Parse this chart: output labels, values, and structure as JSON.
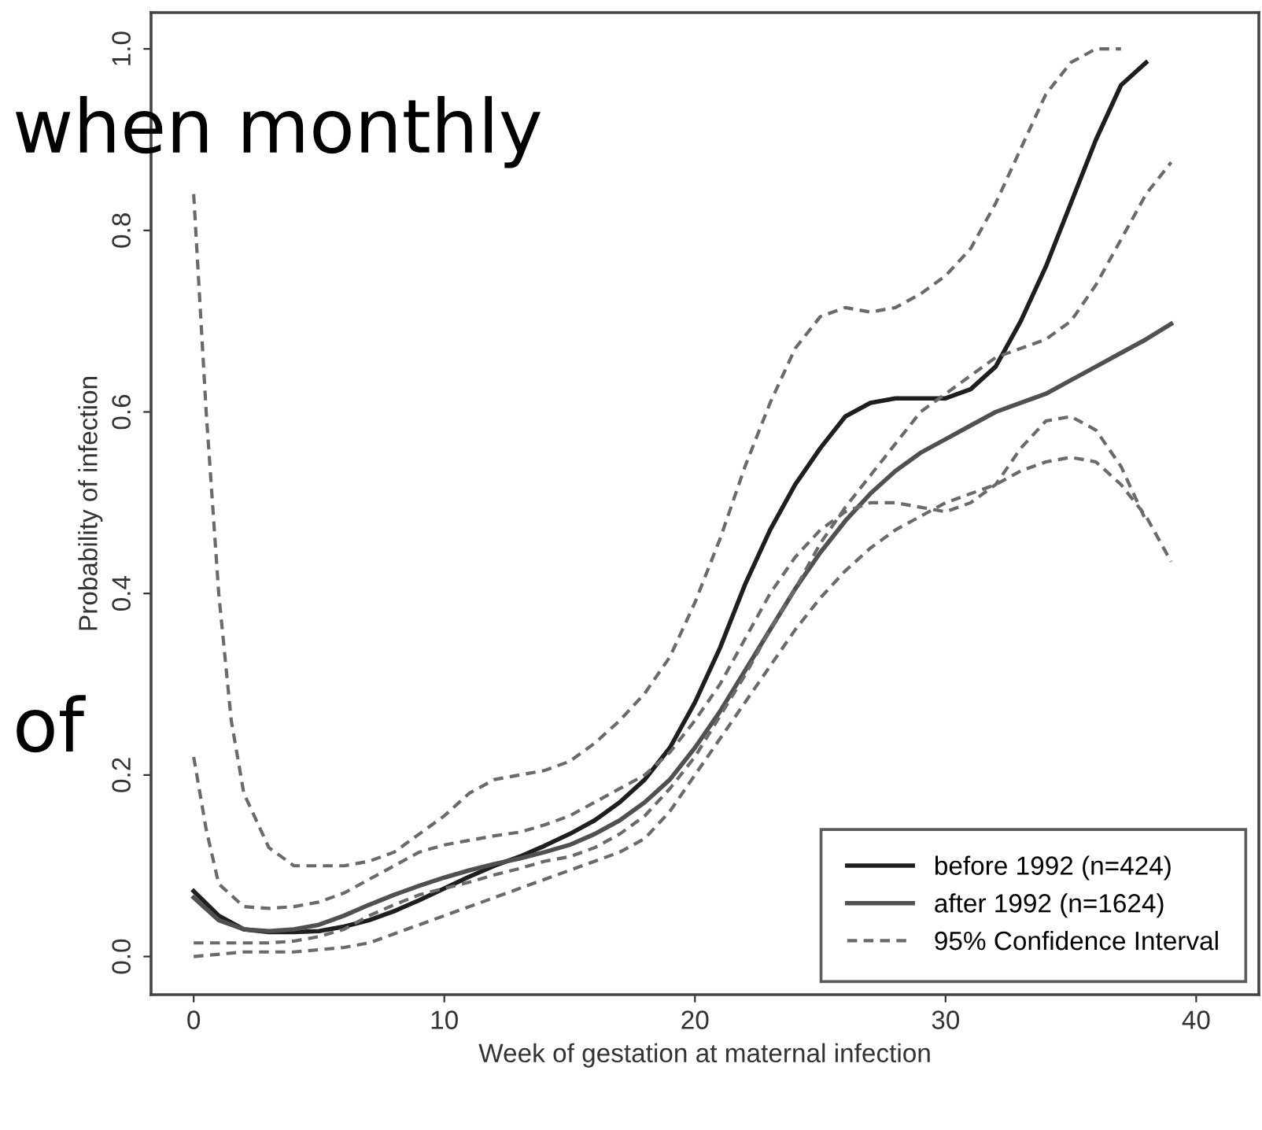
{
  "chart_data": {
    "type": "line",
    "xlabel": "Week of gestation at maternal infection",
    "ylabel": "Probability of infection",
    "xlim": [
      -1.7,
      42.5
    ],
    "ylim": [
      -0.042,
      1.04
    ],
    "xticks": [
      0,
      10,
      20,
      30,
      40
    ],
    "yticks": [
      {
        "value": 0,
        "label": "0.0"
      },
      0.2,
      0.4,
      0.6,
      0.8,
      {
        "value": 1,
        "label": "1.0"
      }
    ],
    "grid": false,
    "legend": "bottom right",
    "annotations": [
      "when monthly",
      "of"
    ],
    "series": [
      {
        "name": "before 1992 (n=424)",
        "color": "#1e1e1e",
        "line_style": "solid",
        "x": [
          0,
          1,
          2,
          3,
          4,
          5,
          6,
          7,
          8,
          9,
          10,
          11,
          12,
          13,
          14,
          15,
          16,
          17,
          18,
          19,
          20,
          21,
          22,
          23,
          24,
          25,
          26,
          27,
          28,
          29,
          30,
          31,
          32,
          33,
          34,
          35,
          36,
          37,
          38
        ],
        "values": [
          0.072,
          0.045,
          0.03,
          0.027,
          0.027,
          0.028,
          0.033,
          0.04,
          0.05,
          0.062,
          0.075,
          0.088,
          0.1,
          0.11,
          0.122,
          0.135,
          0.15,
          0.17,
          0.195,
          0.23,
          0.28,
          0.34,
          0.41,
          0.47,
          0.52,
          0.56,
          0.595,
          0.61,
          0.615,
          0.615,
          0.615,
          0.625,
          0.65,
          0.7,
          0.76,
          0.83,
          0.9,
          0.96,
          0.985
        ]
      },
      {
        "name": "after 1992 (n=1624)",
        "color": "#505050",
        "line_style": "solid",
        "x": [
          0,
          1,
          2,
          3,
          4,
          5,
          6,
          7,
          8,
          9,
          10,
          11,
          12,
          13,
          14,
          15,
          16,
          17,
          18,
          19,
          20,
          21,
          22,
          23,
          24,
          25,
          26,
          27,
          28,
          29,
          30,
          31,
          32,
          33,
          34,
          35,
          36,
          37,
          38,
          39
        ],
        "values": [
          0.065,
          0.04,
          0.03,
          0.028,
          0.03,
          0.035,
          0.045,
          0.057,
          0.068,
          0.078,
          0.087,
          0.095,
          0.102,
          0.108,
          0.115,
          0.123,
          0.135,
          0.15,
          0.17,
          0.195,
          0.23,
          0.27,
          0.315,
          0.36,
          0.405,
          0.445,
          0.48,
          0.51,
          0.535,
          0.555,
          0.57,
          0.585,
          0.6,
          0.61,
          0.62,
          0.635,
          0.65,
          0.665,
          0.68,
          0.697
        ]
      },
      {
        "name": "95% Confidence Interval",
        "color": "#6a6a6a",
        "line_style": "dashed",
        "x": [
          0,
          0.5,
          1,
          1.5,
          2,
          3,
          4,
          6,
          7,
          8,
          9,
          10,
          11,
          12,
          13,
          14,
          15,
          16,
          17,
          18,
          19,
          20,
          21,
          22,
          23,
          24,
          25,
          26,
          27,
          28,
          29,
          30,
          31,
          32,
          33,
          34,
          35,
          36,
          37
        ],
        "values": [
          0.84,
          0.6,
          0.4,
          0.26,
          0.18,
          0.12,
          0.1,
          0.1,
          0.105,
          0.115,
          0.135,
          0.155,
          0.18,
          0.195,
          0.2,
          0.205,
          0.215,
          0.235,
          0.26,
          0.29,
          0.33,
          0.39,
          0.46,
          0.54,
          0.61,
          0.67,
          0.705,
          0.715,
          0.71,
          0.715,
          0.73,
          0.75,
          0.78,
          0.83,
          0.89,
          0.95,
          0.985,
          1.0,
          1.0
        ]
      },
      {
        "color": "#6a6a6a",
        "line_style": "dashed",
        "x": [
          0,
          0.5,
          1,
          2,
          3,
          4,
          5,
          6,
          7,
          8,
          9,
          10,
          11,
          12,
          13,
          14,
          15,
          16,
          17,
          18,
          19,
          20,
          21,
          22,
          23,
          24,
          25,
          26,
          27,
          28,
          29,
          30,
          31,
          32,
          33,
          34,
          35,
          36,
          37,
          38
        ],
        "values": [
          0.22,
          0.14,
          0.08,
          0.055,
          0.053,
          0.055,
          0.06,
          0.07,
          0.085,
          0.1,
          0.115,
          0.123,
          0.128,
          0.133,
          0.137,
          0.145,
          0.155,
          0.17,
          0.185,
          0.2,
          0.225,
          0.26,
          0.3,
          0.35,
          0.4,
          0.44,
          0.47,
          0.49,
          0.5,
          0.5,
          0.495,
          0.49,
          0.5,
          0.52,
          0.56,
          0.59,
          0.595,
          0.58,
          0.54,
          0.48
        ]
      },
      {
        "color": "#6a6a6a",
        "line_style": "dashed",
        "x": [
          0,
          1,
          2,
          3,
          4,
          5,
          6,
          7,
          8,
          9,
          10,
          11,
          12,
          13,
          14,
          15,
          16,
          17,
          18,
          19,
          20,
          21,
          22,
          23,
          24,
          25,
          26,
          27,
          28,
          29,
          30,
          31,
          32,
          33,
          34,
          35,
          36,
          37,
          38,
          39
        ],
        "values": [
          0.015,
          0.015,
          0.015,
          0.015,
          0.017,
          0.022,
          0.03,
          0.045,
          0.057,
          0.068,
          0.075,
          0.082,
          0.09,
          0.097,
          0.105,
          0.11,
          0.12,
          0.135,
          0.155,
          0.185,
          0.22,
          0.265,
          0.31,
          0.36,
          0.405,
          0.455,
          0.495,
          0.53,
          0.565,
          0.6,
          0.62,
          0.64,
          0.66,
          0.67,
          0.68,
          0.7,
          0.74,
          0.79,
          0.84,
          0.875
        ]
      },
      {
        "color": "#6a6a6a",
        "line_style": "dashed",
        "x": [
          0,
          2,
          4,
          6,
          7,
          8,
          9,
          10,
          11,
          12,
          13,
          14,
          15,
          16,
          17,
          18,
          19,
          20,
          21,
          22,
          23,
          24,
          25,
          26,
          27,
          28,
          29,
          30,
          31,
          32,
          33,
          34,
          35,
          36,
          37,
          38,
          39
        ],
        "values": [
          0.0,
          0.005,
          0.005,
          0.01,
          0.015,
          0.025,
          0.035,
          0.045,
          0.055,
          0.065,
          0.075,
          0.085,
          0.095,
          0.105,
          0.115,
          0.13,
          0.16,
          0.2,
          0.24,
          0.28,
          0.32,
          0.36,
          0.395,
          0.425,
          0.45,
          0.47,
          0.485,
          0.5,
          0.51,
          0.52,
          0.535,
          0.545,
          0.55,
          0.545,
          0.52,
          0.485,
          0.435
        ]
      }
    ]
  }
}
